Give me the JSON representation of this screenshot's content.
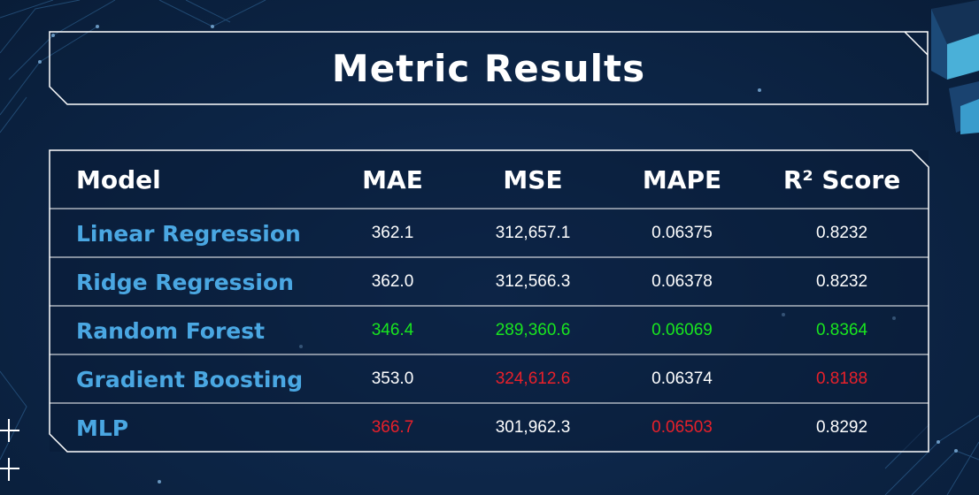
{
  "title": "Metric Results",
  "table": {
    "headers": [
      "Model",
      "MAE",
      "MSE",
      "MAPE",
      "R² Score"
    ],
    "rows": [
      {
        "model": "Linear Regression",
        "values": [
          "362.1",
          "312,657.1",
          "0.06375",
          "0.8232"
        ],
        "status": [
          "neutral",
          "neutral",
          "neutral",
          "neutral"
        ]
      },
      {
        "model": "Ridge Regression",
        "values": [
          "362.0",
          "312,566.3",
          "0.06378",
          "0.8232"
        ],
        "status": [
          "neutral",
          "neutral",
          "neutral",
          "neutral"
        ]
      },
      {
        "model": "Random Forest",
        "values": [
          "346.4",
          "289,360.6",
          "0.06069",
          "0.8364"
        ],
        "status": [
          "good",
          "good",
          "good",
          "good"
        ]
      },
      {
        "model": "Gradient Boosting",
        "values": [
          "353.0",
          "324,612.6",
          "0.06374",
          "0.8188"
        ],
        "status": [
          "neutral",
          "bad",
          "neutral",
          "bad"
        ]
      },
      {
        "model": "MLP",
        "values": [
          "366.7",
          "301,962.3",
          "0.06503",
          "0.8292"
        ],
        "status": [
          "bad",
          "neutral",
          "bad",
          "neutral"
        ]
      }
    ]
  },
  "colors": {
    "background": "#0d2648",
    "model_text": "#4aa7e2",
    "best": "#19e61f",
    "worst": "#e8202a",
    "frame": "#ffffff"
  }
}
